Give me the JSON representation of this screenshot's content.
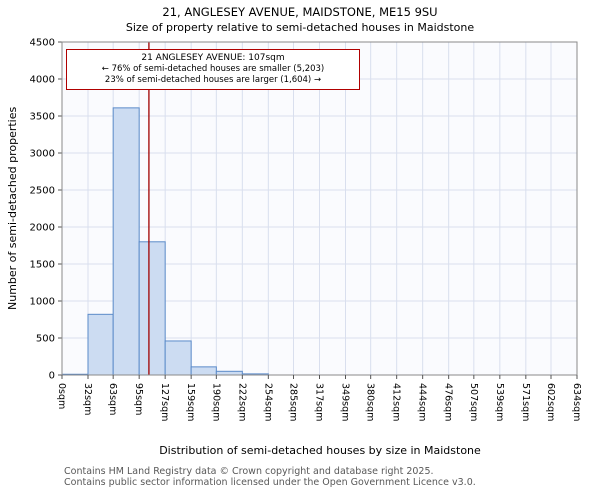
{
  "title": "21, ANGLESEY AVENUE, MAIDSTONE, ME15 9SU",
  "subtitle": "Size of property relative to semi-detached houses in Maidstone",
  "annotation": {
    "line1": "21 ANGLESEY AVENUE: 107sqm",
    "line2": "← 76% of semi-detached houses are smaller (5,203)",
    "line3": "23% of semi-detached houses are larger (1,604) →"
  },
  "footer": {
    "line1": "Contains HM Land Registry data © Crown copyright and database right 2025.",
    "line2": "Contains public sector information licensed under the Open Government Licence v3.0."
  },
  "chart_data": {
    "type": "bar",
    "title": "21, ANGLESEY AVENUE, MAIDSTONE, ME15 9SU",
    "subtitle": "Size of property relative to semi-detached houses in Maidstone",
    "xlabel": "Distribution of semi-detached houses by size in Maidstone",
    "ylabel": "Number of semi-detached properties",
    "bin_edges_sqm": [
      0,
      32,
      63,
      95,
      127,
      159,
      190,
      222,
      254,
      285,
      317,
      349,
      380,
      412,
      444,
      476,
      507,
      539,
      571,
      602,
      634
    ],
    "categories": [
      "0sqm",
      "32sqm",
      "63sqm",
      "95sqm",
      "127sqm",
      "159sqm",
      "190sqm",
      "222sqm",
      "254sqm",
      "285sqm",
      "317sqm",
      "349sqm",
      "380sqm",
      "412sqm",
      "444sqm",
      "476sqm",
      "507sqm",
      "539sqm",
      "571sqm",
      "602sqm",
      "634sqm"
    ],
    "values": [
      10,
      820,
      3610,
      1800,
      460,
      110,
      50,
      15,
      0,
      0,
      0,
      0,
      0,
      0,
      0,
      0,
      0,
      0,
      0,
      0
    ],
    "marker_value_sqm": 107,
    "ylim": [
      0,
      4500
    ],
    "ytick_step": 500,
    "grid": true,
    "colors": {
      "bar_fill": "#ccdcf2",
      "bar_border": "#5b8bc9",
      "marker_line": "#a00000",
      "grid": "#d9dfee",
      "plot_border": "#8a8a8a",
      "plot_bg": "#fafbfe",
      "tick": "#555555"
    }
  }
}
